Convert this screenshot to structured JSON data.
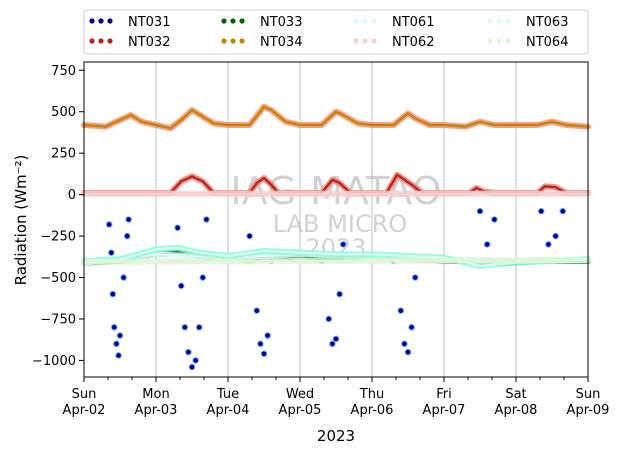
{
  "chart_data": {
    "type": "scatter",
    "xlabel": "2023",
    "ylabel": "Radiation (Wm⁻²)",
    "ylim": [
      -1100,
      800
    ],
    "xlim": [
      0,
      7
    ],
    "yticks": [
      -1000,
      -750,
      -500,
      -250,
      0,
      250,
      500,
      750
    ],
    "xticks": [
      {
        "day": 0,
        "line1": "Sun",
        "line2": "Apr-02"
      },
      {
        "day": 1,
        "line1": "Mon",
        "line2": "Apr-03"
      },
      {
        "day": 2,
        "line1": "Tue",
        "line2": "Apr-04"
      },
      {
        "day": 3,
        "line1": "Wed",
        "line2": "Apr-05"
      },
      {
        "day": 4,
        "line1": "Thu",
        "line2": "Apr-06"
      },
      {
        "day": 5,
        "line1": "Fri",
        "line2": "Apr-07"
      },
      {
        "day": 6,
        "line1": "Sat",
        "line2": "Apr-08"
      },
      {
        "day": 7,
        "line1": "Sun",
        "line2": "Apr-09"
      }
    ],
    "grid": "vertical",
    "legend_placement": "top",
    "watermark": [
      "IAG-MATAO",
      "LAB MICRO",
      "2023"
    ],
    "series": [
      {
        "name": "NT031",
        "color": "#00008b",
        "edge": "#6fa8ff",
        "style": "dots",
        "points": [
          [
            0.35,
            -180
          ],
          [
            0.38,
            -350
          ],
          [
            0.4,
            -600
          ],
          [
            0.42,
            -800
          ],
          [
            0.45,
            -900
          ],
          [
            0.48,
            -970
          ],
          [
            0.5,
            -850
          ],
          [
            0.55,
            -500
          ],
          [
            0.6,
            -250
          ],
          [
            0.62,
            -150
          ],
          [
            1.3,
            -200
          ],
          [
            1.35,
            -550
          ],
          [
            1.4,
            -800
          ],
          [
            1.45,
            -950
          ],
          [
            1.5,
            -1040
          ],
          [
            1.55,
            -1000
          ],
          [
            1.6,
            -800
          ],
          [
            1.65,
            -500
          ],
          [
            1.7,
            -150
          ],
          [
            2.3,
            -250
          ],
          [
            2.4,
            -700
          ],
          [
            2.45,
            -900
          ],
          [
            2.5,
            -960
          ],
          [
            2.55,
            -850
          ],
          [
            2.6,
            -400
          ],
          [
            3.3,
            -400
          ],
          [
            3.4,
            -750
          ],
          [
            3.45,
            -900
          ],
          [
            3.5,
            -870
          ],
          [
            3.55,
            -600
          ],
          [
            3.6,
            -300
          ],
          [
            4.3,
            -400
          ],
          [
            4.4,
            -700
          ],
          [
            4.45,
            -900
          ],
          [
            4.5,
            -950
          ],
          [
            4.55,
            -800
          ],
          [
            4.6,
            -500
          ],
          [
            5.5,
            -100
          ],
          [
            5.6,
            -300
          ],
          [
            5.7,
            -150
          ],
          [
            6.35,
            -100
          ],
          [
            6.45,
            -300
          ],
          [
            6.55,
            -250
          ],
          [
            6.65,
            -100
          ]
        ]
      },
      {
        "name": "NT032",
        "color": "#b22222",
        "edge": "#f08070",
        "style": "line",
        "points": [
          [
            0,
            10
          ],
          [
            1.2,
            10
          ],
          [
            1.35,
            80
          ],
          [
            1.5,
            110
          ],
          [
            1.65,
            80
          ],
          [
            1.8,
            10
          ],
          [
            2.3,
            10
          ],
          [
            2.4,
            70
          ],
          [
            2.5,
            100
          ],
          [
            2.6,
            60
          ],
          [
            2.7,
            10
          ],
          [
            3.3,
            10
          ],
          [
            3.45,
            90
          ],
          [
            3.55,
            70
          ],
          [
            3.7,
            10
          ],
          [
            4.2,
            10
          ],
          [
            4.35,
            120
          ],
          [
            4.45,
            90
          ],
          [
            4.55,
            60
          ],
          [
            4.7,
            10
          ],
          [
            5.35,
            10
          ],
          [
            5.45,
            40
          ],
          [
            5.55,
            20
          ],
          [
            5.7,
            10
          ],
          [
            6.3,
            10
          ],
          [
            6.4,
            50
          ],
          [
            6.55,
            45
          ],
          [
            6.7,
            10
          ],
          [
            7,
            10
          ]
        ]
      },
      {
        "name": "NT033",
        "color": "#006400",
        "edge": "#2e8b57",
        "style": "line",
        "points": [
          [
            0,
            -410
          ],
          [
            0.5,
            -400
          ],
          [
            0.8,
            -370
          ],
          [
            1.0,
            -360
          ],
          [
            1.3,
            -350
          ],
          [
            1.5,
            -360
          ],
          [
            1.8,
            -390
          ],
          [
            2.0,
            -380
          ],
          [
            2.3,
            -400
          ],
          [
            2.6,
            -370
          ],
          [
            2.8,
            -380
          ],
          [
            3.0,
            -370
          ],
          [
            3.3,
            -390
          ],
          [
            3.6,
            -380
          ],
          [
            4.0,
            -370
          ],
          [
            4.3,
            -380
          ],
          [
            4.6,
            -390
          ],
          [
            5.0,
            -400
          ],
          [
            5.3,
            -400
          ],
          [
            5.6,
            -410
          ],
          [
            6.0,
            -410
          ],
          [
            6.3,
            -400
          ],
          [
            6.6,
            -400
          ],
          [
            7,
            -400
          ]
        ]
      },
      {
        "name": "NT034",
        "color": "#b8860b",
        "edge": "#ff8c69",
        "style": "line",
        "points": [
          [
            0,
            420
          ],
          [
            0.3,
            410
          ],
          [
            0.55,
            460
          ],
          [
            0.65,
            480
          ],
          [
            0.8,
            440
          ],
          [
            1.0,
            420
          ],
          [
            1.2,
            400
          ],
          [
            1.35,
            450
          ],
          [
            1.5,
            510
          ],
          [
            1.65,
            470
          ],
          [
            1.8,
            430
          ],
          [
            2.0,
            420
          ],
          [
            2.3,
            420
          ],
          [
            2.5,
            530
          ],
          [
            2.6,
            510
          ],
          [
            2.8,
            440
          ],
          [
            3.0,
            420
          ],
          [
            3.3,
            420
          ],
          [
            3.5,
            500
          ],
          [
            3.6,
            480
          ],
          [
            3.8,
            430
          ],
          [
            4.0,
            420
          ],
          [
            4.3,
            420
          ],
          [
            4.5,
            490
          ],
          [
            4.6,
            460
          ],
          [
            4.8,
            420
          ],
          [
            5.0,
            420
          ],
          [
            5.3,
            410
          ],
          [
            5.5,
            440
          ],
          [
            5.7,
            420
          ],
          [
            6.0,
            420
          ],
          [
            6.3,
            420
          ],
          [
            6.5,
            440
          ],
          [
            6.7,
            420
          ],
          [
            7,
            410
          ]
        ]
      },
      {
        "name": "NT061",
        "color": "#e0f7fa",
        "edge": "#e0f7fa",
        "style": "line",
        "points": [
          [
            0,
            -410
          ],
          [
            1,
            -360
          ],
          [
            2,
            -380
          ],
          [
            3,
            -360
          ],
          [
            4,
            -370
          ],
          [
            5,
            -390
          ],
          [
            6,
            -400
          ],
          [
            7,
            -390
          ]
        ]
      },
      {
        "name": "NT062",
        "color": "#f5d0d0",
        "edge": "#f5d0d0",
        "style": "line",
        "points": [
          [
            0,
            5
          ],
          [
            7,
            5
          ]
        ]
      },
      {
        "name": "NT063",
        "color": "#e0f7fa",
        "edge": "#7fffd4",
        "style": "line",
        "points": [
          [
            0,
            -400
          ],
          [
            0.5,
            -390
          ],
          [
            1.0,
            -330
          ],
          [
            1.3,
            -320
          ],
          [
            1.6,
            -350
          ],
          [
            2.0,
            -370
          ],
          [
            2.5,
            -340
          ],
          [
            3.0,
            -350
          ],
          [
            3.5,
            -360
          ],
          [
            4.0,
            -360
          ],
          [
            4.5,
            -370
          ],
          [
            5.0,
            -380
          ],
          [
            5.5,
            -430
          ],
          [
            6.0,
            -410
          ],
          [
            6.5,
            -400
          ],
          [
            7,
            -390
          ]
        ]
      },
      {
        "name": "NT064",
        "color": "#dff5d8",
        "edge": "#dff5d8",
        "style": "line",
        "points": [
          [
            0,
            -405
          ],
          [
            7,
            -395
          ]
        ]
      }
    ]
  }
}
